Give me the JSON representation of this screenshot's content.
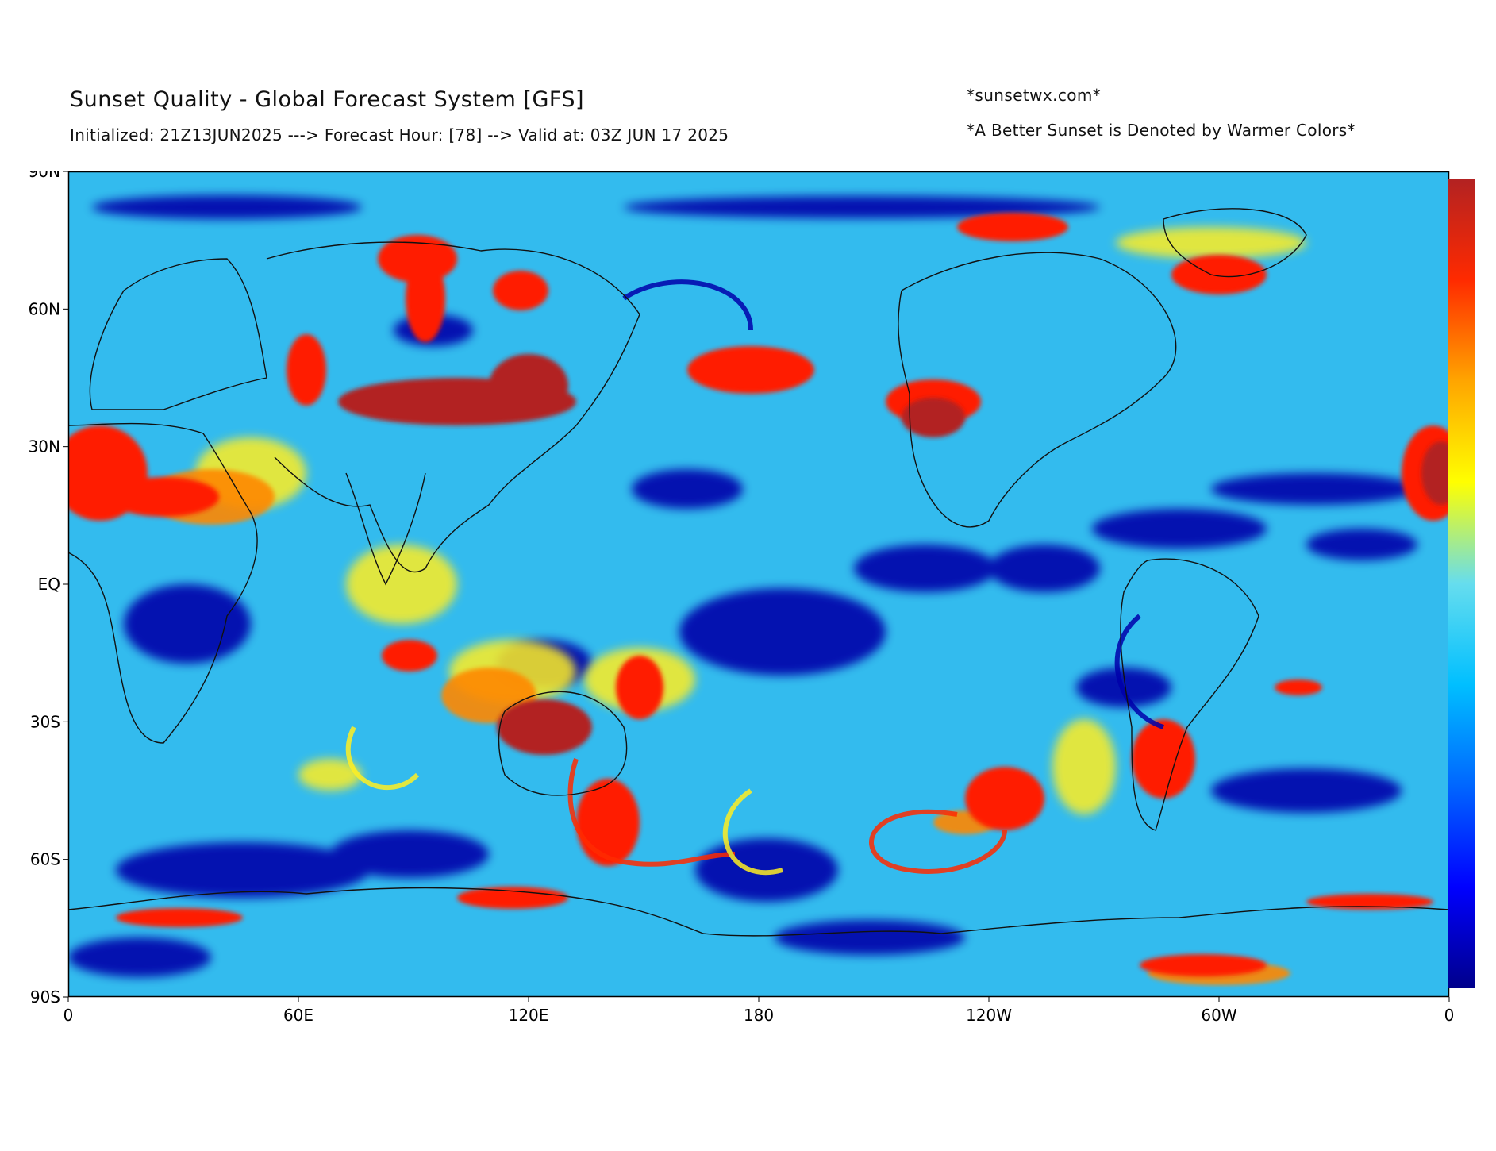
{
  "header": {
    "title": "Sunset Quality - Global Forecast System [GFS]",
    "subtitle": "Initialized: 21Z13JUN2025 ---> Forecast Hour: [78] --> Valid at: 03Z JUN 17 2025",
    "site": "*sunsetwx.com*",
    "note": "*A Better Sunset is Denoted by Warmer Colors*"
  },
  "axes": {
    "lat_labels": [
      "90N",
      "60N",
      "30N",
      "EQ",
      "30S",
      "60S",
      "90S"
    ],
    "lon_labels": [
      "0",
      "60E",
      "120E",
      "180",
      "120W",
      "60W",
      "0"
    ]
  },
  "colorbar": {
    "stops": [
      "#00008b",
      "#0000ff",
      "#0066ff",
      "#00bfff",
      "#66ddee",
      "#ffff00",
      "#ffa500",
      "#ff2a00",
      "#b22222"
    ],
    "orientation": "vertical"
  }
}
